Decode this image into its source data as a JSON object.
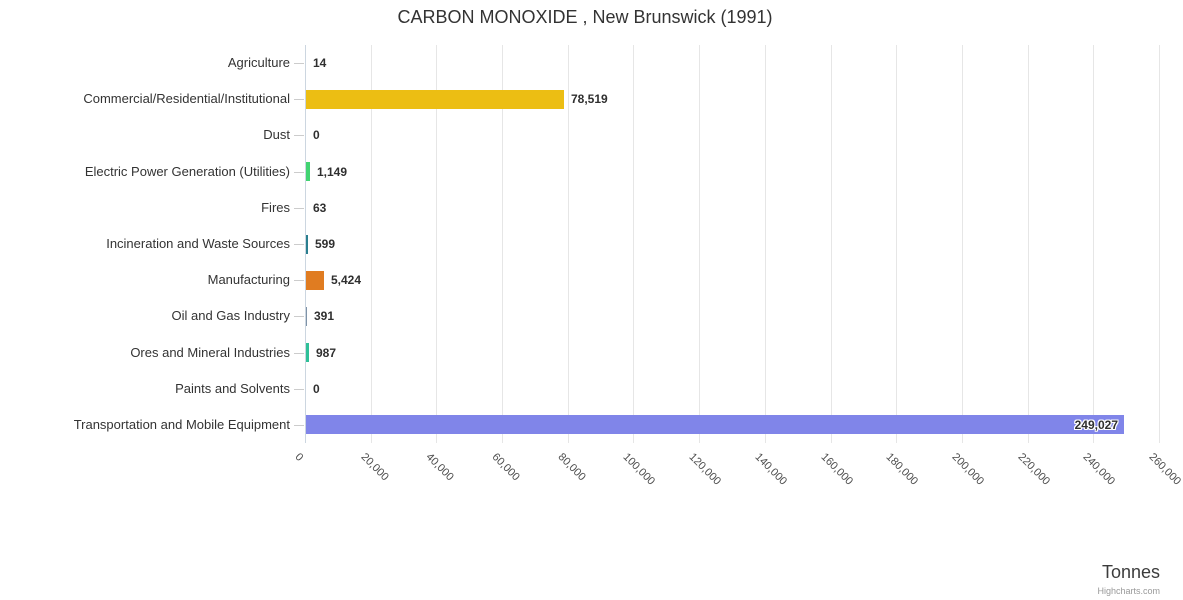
{
  "title": "CARBON MONOXIDE , New Brunswick (1991)",
  "axis_title": "Tonnes",
  "credits": "Highcharts.com",
  "chart_data": {
    "type": "bar",
    "orientation": "horizontal",
    "title": "CARBON MONOXIDE , New Brunswick (1991)",
    "xlabel": "Tonnes",
    "ylabel": "",
    "grid": true,
    "xlim": [
      0,
      260000
    ],
    "categories": [
      "Agriculture",
      "Commercial/Residential/Institutional",
      "Dust",
      "Electric Power Generation (Utilities)",
      "Fires",
      "Incineration and Waste Sources",
      "Manufacturing",
      "Oil and Gas Industry",
      "Ores and Mineral Industries",
      "Paints and Solvents",
      "Transportation and Mobile Equipment"
    ],
    "values": [
      14,
      78519,
      0,
      1149,
      63,
      599,
      5424,
      391,
      987,
      0,
      249027
    ],
    "value_labels": [
      "14",
      "78,519",
      "0",
      "1,149",
      "63",
      "599",
      "5,424",
      "391",
      "987",
      "0",
      "249,027"
    ],
    "bar_colors": [
      "#a9b0b8",
      "#ecbe13",
      "#a9b0b8",
      "#41d371",
      "#a9b0b8",
      "#2a7f8f",
      "#e07c21",
      "#7f93a8",
      "#2fc098",
      "#a9b0b8",
      "#8085e9"
    ],
    "label_inside": [
      false,
      false,
      false,
      false,
      false,
      false,
      false,
      false,
      false,
      false,
      true
    ],
    "x_ticks": [
      0,
      20000,
      40000,
      60000,
      80000,
      100000,
      120000,
      140000,
      160000,
      180000,
      200000,
      220000,
      240000,
      260000
    ],
    "x_tick_labels": [
      "0",
      "20,000",
      "40,000",
      "60,000",
      "80,000",
      "100,000",
      "120,000",
      "140,000",
      "160,000",
      "180,000",
      "200,000",
      "220,000",
      "240,000",
      "260,000"
    ],
    "legend": "off"
  }
}
